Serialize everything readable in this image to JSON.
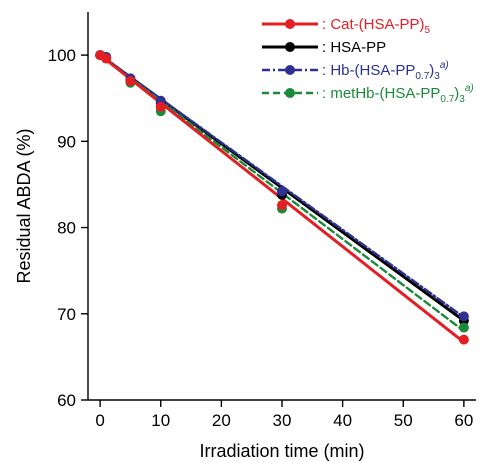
{
  "chart_data": {
    "type": "line",
    "xlabel": "Irradiation time (min)",
    "ylabel": "Residual ABDA (%)",
    "xlim": [
      -2,
      62
    ],
    "ylim": [
      60,
      105
    ],
    "xticks": [
      0,
      10,
      20,
      30,
      40,
      50,
      60
    ],
    "yticks": [
      60,
      70,
      80,
      90,
      100
    ],
    "grid": false,
    "legend_position": "top-right",
    "series": [
      {
        "name": ": HSA-PP",
        "color": "#000000",
        "line_style": "solid",
        "points": [
          [
            0,
            100.0
          ],
          [
            1,
            99.7
          ],
          [
            5,
            97.1
          ],
          [
            10,
            94.5
          ],
          [
            30,
            83.8
          ],
          [
            60,
            69.2
          ]
        ],
        "fit": [
          [
            0,
            100.0
          ],
          [
            60,
            69.2
          ]
        ]
      },
      {
        "name": "Hb-(HSA-PP0.7)3a)",
        "name_parts": [
          {
            "t": ": Hb-(HSA-PP",
            "s": ""
          },
          {
            "t": "0.7",
            "s": "sub"
          },
          {
            "t": ")",
            "s": ""
          },
          {
            "t": "3",
            "s": "sub"
          },
          {
            "t": "a)",
            "s": "sup"
          }
        ],
        "color": "#2e3192",
        "line_style": "dashdot",
        "points": [
          [
            0,
            100.0
          ],
          [
            1,
            99.8
          ],
          [
            5,
            97.3
          ],
          [
            10,
            94.7
          ],
          [
            30,
            84.2
          ],
          [
            60,
            69.7
          ]
        ],
        "fit": [
          [
            0,
            100.0
          ],
          [
            60,
            69.6
          ]
        ]
      },
      {
        "name": "metHb-(HSA-PP0.7)3a)",
        "name_parts": [
          {
            "t": ": metHb-(HSA-PP",
            "s": ""
          },
          {
            "t": "0.7",
            "s": "sub"
          },
          {
            "t": ")",
            "s": ""
          },
          {
            "t": "3",
            "s": "sub"
          },
          {
            "t": "a)",
            "s": "sup"
          }
        ],
        "color": "#1a8a3a",
        "line_style": "dashed",
        "points": [
          [
            0,
            100.0
          ],
          [
            1,
            99.6
          ],
          [
            5,
            96.8
          ],
          [
            10,
            93.5
          ],
          [
            30,
            82.2
          ],
          [
            60,
            68.4
          ]
        ],
        "fit": [
          [
            0,
            100.0
          ],
          [
            60,
            68.0
          ]
        ]
      },
      {
        "name": "Cat-(HSA-PP)5",
        "name_parts": [
          {
            "t": ": Cat-(HSA-PP)",
            "s": ""
          },
          {
            "t": "5",
            "s": "sub"
          }
        ],
        "color": "#e31e24",
        "line_style": "solid",
        "points": [
          [
            0,
            100.0
          ],
          [
            1,
            99.6
          ],
          [
            5,
            97.0
          ],
          [
            10,
            94.0
          ],
          [
            30,
            82.6
          ],
          [
            60,
            67.0
          ]
        ],
        "fit": [
          [
            0,
            100.0
          ],
          [
            60,
            66.7
          ]
        ]
      }
    ],
    "legend_order": [
      3,
      0,
      1,
      2
    ]
  }
}
